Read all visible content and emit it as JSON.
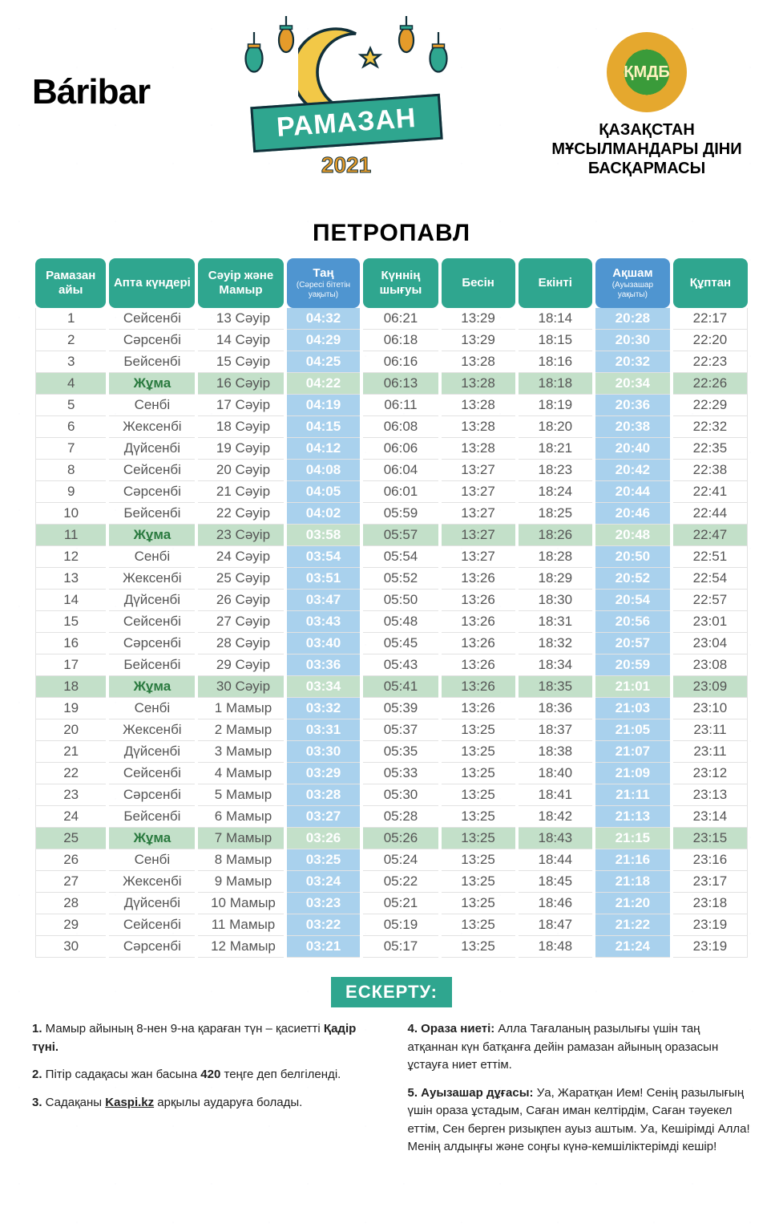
{
  "brand": "Báribar",
  "banner": "РАМАЗАН",
  "year": "2021",
  "org": "ҚАЗАҚСТАН МҰСЫЛМАНДАРЫ ДІНИ БАСҚАРМАСЫ",
  "org_logo": "ҚМДБ",
  "city": "ПЕТРОПАВЛ",
  "colors": {
    "teal": "#2fa68f",
    "blue": "#4f95d0",
    "blue_light": "#a9d1ed",
    "green_row": "#c3e0c9",
    "yellow": "#e5a82e"
  },
  "headers": [
    {
      "label": "Рамазан айы",
      "sub": "",
      "cls": "th-teal"
    },
    {
      "label": "Апта күндері",
      "sub": "",
      "cls": "th-teal"
    },
    {
      "label": "Сәуір және Мамыр",
      "sub": "",
      "cls": "th-teal"
    },
    {
      "label": "Таң",
      "sub": "(Сәресі бітетін уақыты)",
      "cls": "th-blue"
    },
    {
      "label": "Күннің шығуы",
      "sub": "",
      "cls": "th-teal"
    },
    {
      "label": "Бесін",
      "sub": "",
      "cls": "th-teal"
    },
    {
      "label": "Екінті",
      "sub": "",
      "cls": "th-teal"
    },
    {
      "label": "Ақшам",
      "sub": "(Ауызашар уақыты)",
      "cls": "th-blue"
    },
    {
      "label": "Құптан",
      "sub": "",
      "cls": "th-teal"
    }
  ],
  "rows": [
    {
      "n": "1",
      "day": "Сейсенбі",
      "date": "13 Сәуір",
      "t1": "04:32",
      "t2": "06:21",
      "t3": "13:29",
      "t4": "18:14",
      "t5": "20:28",
      "t6": "22:17",
      "fri": false
    },
    {
      "n": "2",
      "day": "Сәрсенбі",
      "date": "14 Сәуір",
      "t1": "04:29",
      "t2": "06:18",
      "t3": "13:29",
      "t4": "18:15",
      "t5": "20:30",
      "t6": "22:20",
      "fri": false
    },
    {
      "n": "3",
      "day": "Бейсенбі",
      "date": "15 Сәуір",
      "t1": "04:25",
      "t2": "06:16",
      "t3": "13:28",
      "t4": "18:16",
      "t5": "20:32",
      "t6": "22:23",
      "fri": false
    },
    {
      "n": "4",
      "day": "Жұма",
      "date": "16 Сәуір",
      "t1": "04:22",
      "t2": "06:13",
      "t3": "13:28",
      "t4": "18:18",
      "t5": "20:34",
      "t6": "22:26",
      "fri": true
    },
    {
      "n": "5",
      "day": "Сенбі",
      "date": "17 Сәуір",
      "t1": "04:19",
      "t2": "06:11",
      "t3": "13:28",
      "t4": "18:19",
      "t5": "20:36",
      "t6": "22:29",
      "fri": false
    },
    {
      "n": "6",
      "day": "Жексенбі",
      "date": "18 Сәуір",
      "t1": "04:15",
      "t2": "06:08",
      "t3": "13:28",
      "t4": "18:20",
      "t5": "20:38",
      "t6": "22:32",
      "fri": false
    },
    {
      "n": "7",
      "day": "Дүйсенбі",
      "date": "19 Сәуір",
      "t1": "04:12",
      "t2": "06:06",
      "t3": "13:28",
      "t4": "18:21",
      "t5": "20:40",
      "t6": "22:35",
      "fri": false
    },
    {
      "n": "8",
      "day": "Сейсенбі",
      "date": "20 Сәуір",
      "t1": "04:08",
      "t2": "06:04",
      "t3": "13:27",
      "t4": "18:23",
      "t5": "20:42",
      "t6": "22:38",
      "fri": false
    },
    {
      "n": "9",
      "day": "Сәрсенбі",
      "date": "21 Сәуір",
      "t1": "04:05",
      "t2": "06:01",
      "t3": "13:27",
      "t4": "18:24",
      "t5": "20:44",
      "t6": "22:41",
      "fri": false
    },
    {
      "n": "10",
      "day": "Бейсенбі",
      "date": "22 Сәуір",
      "t1": "04:02",
      "t2": "05:59",
      "t3": "13:27",
      "t4": "18:25",
      "t5": "20:46",
      "t6": "22:44",
      "fri": false
    },
    {
      "n": "11",
      "day": "Жұма",
      "date": "23 Сәуір",
      "t1": "03:58",
      "t2": "05:57",
      "t3": "13:27",
      "t4": "18:26",
      "t5": "20:48",
      "t6": "22:47",
      "fri": true
    },
    {
      "n": "12",
      "day": "Сенбі",
      "date": "24 Сәуір",
      "t1": "03:54",
      "t2": "05:54",
      "t3": "13:27",
      "t4": "18:28",
      "t5": "20:50",
      "t6": "22:51",
      "fri": false
    },
    {
      "n": "13",
      "day": "Жексенбі",
      "date": "25 Сәуір",
      "t1": "03:51",
      "t2": "05:52",
      "t3": "13:26",
      "t4": "18:29",
      "t5": "20:52",
      "t6": "22:54",
      "fri": false
    },
    {
      "n": "14",
      "day": "Дүйсенбі",
      "date": "26 Сәуір",
      "t1": "03:47",
      "t2": "05:50",
      "t3": "13:26",
      "t4": "18:30",
      "t5": "20:54",
      "t6": "22:57",
      "fri": false
    },
    {
      "n": "15",
      "day": "Сейсенбі",
      "date": "27 Сәуір",
      "t1": "03:43",
      "t2": "05:48",
      "t3": "13:26",
      "t4": "18:31",
      "t5": "20:56",
      "t6": "23:01",
      "fri": false
    },
    {
      "n": "16",
      "day": "Сәрсенбі",
      "date": "28 Сәуір",
      "t1": "03:40",
      "t2": "05:45",
      "t3": "13:26",
      "t4": "18:32",
      "t5": "20:57",
      "t6": "23:04",
      "fri": false
    },
    {
      "n": "17",
      "day": "Бейсенбі",
      "date": "29 Сәуір",
      "t1": "03:36",
      "t2": "05:43",
      "t3": "13:26",
      "t4": "18:34",
      "t5": "20:59",
      "t6": "23:08",
      "fri": false
    },
    {
      "n": "18",
      "day": "Жұма",
      "date": "30 Сәуір",
      "t1": "03:34",
      "t2": "05:41",
      "t3": "13:26",
      "t4": "18:35",
      "t5": "21:01",
      "t6": "23:09",
      "fri": true
    },
    {
      "n": "19",
      "day": "Сенбі",
      "date": "1 Мамыр",
      "t1": "03:32",
      "t2": "05:39",
      "t3": "13:26",
      "t4": "18:36",
      "t5": "21:03",
      "t6": "23:10",
      "fri": false
    },
    {
      "n": "20",
      "day": "Жексенбі",
      "date": "2 Мамыр",
      "t1": "03:31",
      "t2": "05:37",
      "t3": "13:25",
      "t4": "18:37",
      "t5": "21:05",
      "t6": "23:11",
      "fri": false
    },
    {
      "n": "21",
      "day": "Дүйсенбі",
      "date": "3 Мамыр",
      "t1": "03:30",
      "t2": "05:35",
      "t3": "13:25",
      "t4": "18:38",
      "t5": "21:07",
      "t6": "23:11",
      "fri": false
    },
    {
      "n": "22",
      "day": "Сейсенбі",
      "date": "4 Мамыр",
      "t1": "03:29",
      "t2": "05:33",
      "t3": "13:25",
      "t4": "18:40",
      "t5": "21:09",
      "t6": "23:12",
      "fri": false
    },
    {
      "n": "23",
      "day": "Сәрсенбі",
      "date": "5 Мамыр",
      "t1": "03:28",
      "t2": "05:30",
      "t3": "13:25",
      "t4": "18:41",
      "t5": "21:11",
      "t6": "23:13",
      "fri": false
    },
    {
      "n": "24",
      "day": "Бейсенбі",
      "date": "6 Мамыр",
      "t1": "03:27",
      "t2": "05:28",
      "t3": "13:25",
      "t4": "18:42",
      "t5": "21:13",
      "t6": "23:14",
      "fri": false
    },
    {
      "n": "25",
      "day": "Жұма",
      "date": "7 Мамыр",
      "t1": "03:26",
      "t2": "05:26",
      "t3": "13:25",
      "t4": "18:43",
      "t5": "21:15",
      "t6": "23:15",
      "fri": true
    },
    {
      "n": "26",
      "day": "Сенбі",
      "date": "8 Мамыр",
      "t1": "03:25",
      "t2": "05:24",
      "t3": "13:25",
      "t4": "18:44",
      "t5": "21:16",
      "t6": "23:16",
      "fri": false
    },
    {
      "n": "27",
      "day": "Жексенбі",
      "date": "9 Мамыр",
      "t1": "03:24",
      "t2": "05:22",
      "t3": "13:25",
      "t4": "18:45",
      "t5": "21:18",
      "t6": "23:17",
      "fri": false
    },
    {
      "n": "28",
      "day": "Дүйсенбі",
      "date": "10 Мамыр",
      "t1": "03:23",
      "t2": "05:21",
      "t3": "13:25",
      "t4": "18:46",
      "t5": "21:20",
      "t6": "23:18",
      "fri": false
    },
    {
      "n": "29",
      "day": "Сейсенбі",
      "date": "11 Мамыр",
      "t1": "03:22",
      "t2": "05:19",
      "t3": "13:25",
      "t4": "18:47",
      "t5": "21:22",
      "t6": "23:19",
      "fri": false
    },
    {
      "n": "30",
      "day": "Сәрсенбі",
      "date": "12 Мамыр",
      "t1": "03:21",
      "t2": "05:17",
      "t3": "13:25",
      "t4": "18:48",
      "t5": "21:24",
      "t6": "23:19",
      "fri": false
    }
  ],
  "note_header": "ЕСКЕРТУ:",
  "notes_left": [
    {
      "b": "1.",
      "text": " Мамыр айының 8-нен 9-на қараған түн – қасиетті ",
      "bold": "Қадір түні."
    },
    {
      "b": "2.",
      "text": " Пітір садақасы жан басына ",
      "bold": "420",
      "after": " теңге деп белгіленді."
    },
    {
      "b": "3.",
      "text": " Садақаны ",
      "u": "Kaspi.kz",
      "after": " арқылы аударуға болады."
    }
  ],
  "notes_right": [
    {
      "b": "4. Ораза ниеті:",
      "text": " Алла Тағаланың разылығы үшін таң атқаннан күн батқанға дейін рамазан айының оразасын ұстауға ниет еттім."
    },
    {
      "b": "5. Ауызашар дұғасы:",
      "text": " Уа, Жаратқан Ием! Сенің разылығың үшін ораза ұстадым, Саған иман келтірдім, Саған тәуекел еттім, Сен берген ризықпен ауыз аштым. Уа, Кешірімді Алла! Менің алдыңғы және соңғы күнә-кемшіліктерімді кешір!"
    }
  ]
}
